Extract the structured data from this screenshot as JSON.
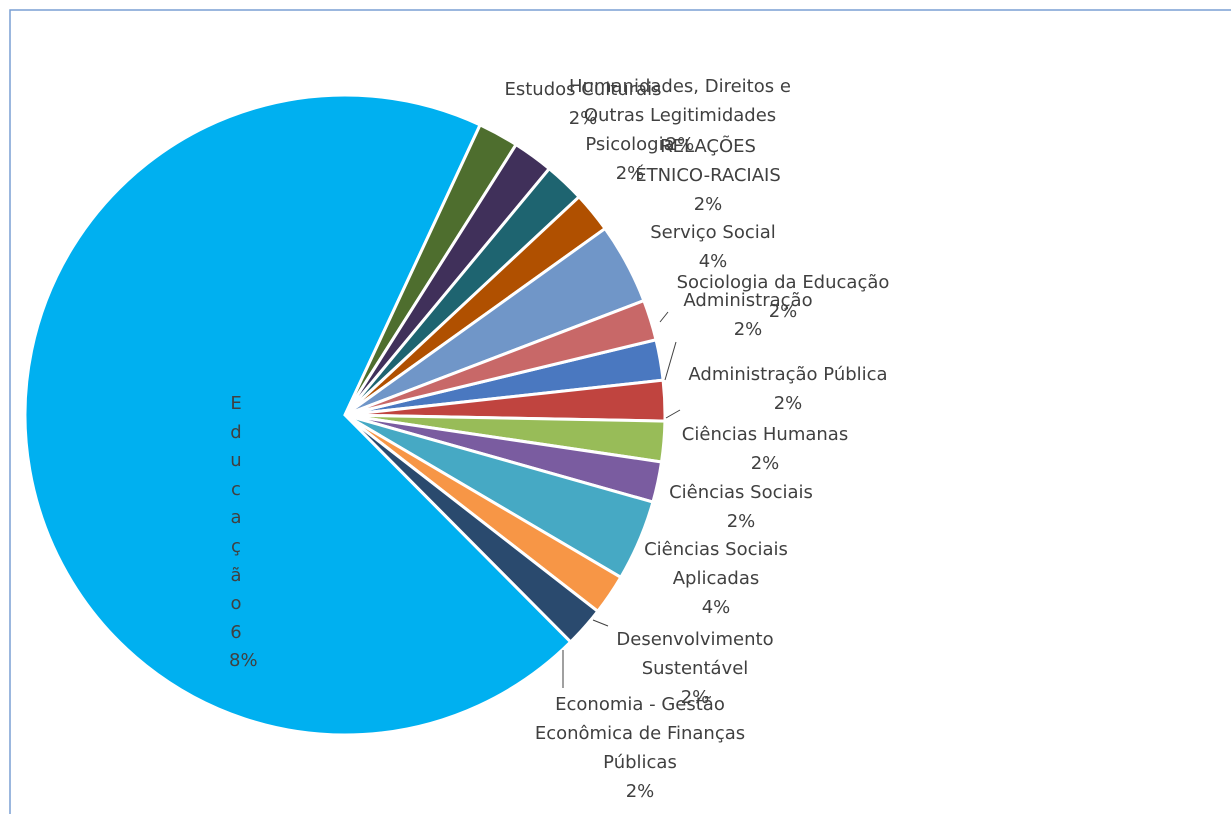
{
  "chart_data": {
    "type": "pie",
    "categories": [
      "Administração",
      "Administração Pública",
      "Ciências Humanas",
      "Ciências Sociais",
      "Ciências Sociais Aplicadas",
      "Desenvolvimento Sustentável",
      "Economia - Gestão Econômica de Finanças Públicas",
      "Educação",
      "Estudos Culturais",
      "Humanidades, Direitos e Outras Legitimidades",
      "Psicologia",
      "RELAÇÕES ÉTNICO-RACIAIS",
      "Serviço Social",
      "Sociologia da Educação"
    ],
    "values": [
      2,
      2,
      2,
      2,
      4,
      2,
      2,
      68,
      2,
      2,
      2,
      2,
      4,
      2
    ],
    "value_labels": [
      "2%",
      "2%",
      "2%",
      "2%",
      "4%",
      "2%",
      "2%",
      "68%",
      "2%",
      "2%",
      "2%",
      "2%",
      "4%",
      "2%"
    ],
    "colors": [
      "#4a78c0",
      "#c0443f",
      "#98bc58",
      "#7a5ca0",
      "#46a9c4",
      "#f79646",
      "#2a4a6e",
      "#00b0f0",
      "#4e6e2e",
      "#40305a",
      "#1e6470",
      "#b05000",
      "#7096c8",
      "#c86868"
    ]
  }
}
